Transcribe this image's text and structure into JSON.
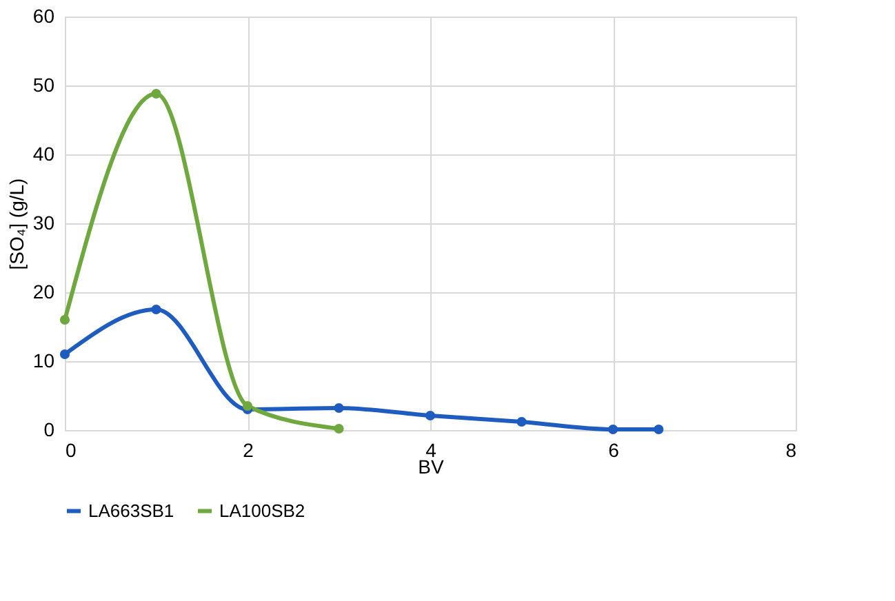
{
  "chart_data": {
    "type": "line",
    "xlabel": "BV",
    "ylabel": "[SO₄] (g/L)",
    "xlim": [
      0,
      8
    ],
    "xticks": [
      0,
      2,
      4,
      6,
      8
    ],
    "ylim": [
      0,
      60
    ],
    "yticks": [
      0,
      10,
      20,
      30,
      40,
      50,
      60
    ],
    "grid": true,
    "legend": "bottom",
    "marker": "circle",
    "line_style": "solid",
    "series": [
      {
        "name": "LA663SB1",
        "color": "#1f5cc0",
        "x": [
          0,
          1,
          2,
          3,
          4,
          5,
          6,
          6.5
        ],
        "values": [
          11,
          17.5,
          3,
          3.2,
          2.1,
          1.2,
          0.1,
          0.1
        ]
      },
      {
        "name": "LA100SB2",
        "color": "#6fa83e",
        "x": [
          0,
          1,
          2,
          3
        ],
        "values": [
          16,
          48.8,
          3.5,
          0.2
        ]
      }
    ]
  }
}
